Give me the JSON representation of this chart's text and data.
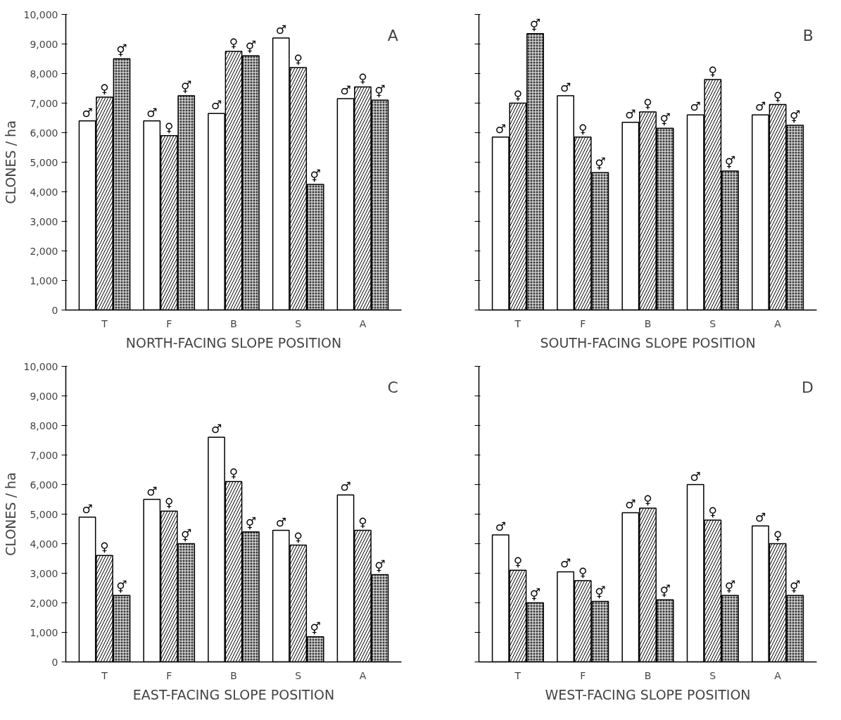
{
  "chart_data": [
    {
      "type": "bar",
      "xlabel": "NORTH-FACING SLOPE POSITION",
      "ylabel": "CLONES / ha",
      "annotations": [
        "A"
      ],
      "categories": [
        "T",
        "F",
        "B",
        "S",
        "A"
      ],
      "ylim": [
        0,
        10000
      ],
      "yticks": [
        0,
        {
          "value": 1000,
          "label": "1,000"
        },
        {
          "value": 2000,
          "label": "2,000"
        },
        {
          "value": 3000,
          "label": "3,000"
        },
        {
          "value": 4000,
          "label": "4,000"
        },
        {
          "value": 5000,
          "label": "5,000"
        },
        {
          "value": 6000,
          "label": "6,000"
        },
        {
          "value": 7000,
          "label": "7,000"
        },
        {
          "value": 8000,
          "label": "8,000"
        },
        {
          "value": 9000,
          "label": "9,000"
        },
        {
          "value": 10000,
          "label": "10,000"
        }
      ],
      "series": [
        {
          "name": "♂",
          "color": "#ffffff",
          "values": [
            6400,
            6400,
            6650,
            9200,
            7150
          ]
        },
        {
          "name": "♀",
          "color": "#ffffff",
          "values": [
            7200,
            5900,
            8750,
            8200,
            7550
          ]
        },
        {
          "name": "⚥",
          "color": "#3a3a3a",
          "values": [
            8500,
            7250,
            8600,
            4250,
            7100
          ]
        }
      ]
    },
    {
      "type": "bar",
      "xlabel": "SOUTH-FACING SLOPE POSITION",
      "annotations": [
        "B"
      ],
      "categories": [
        "T",
        "F",
        "B",
        "S",
        "A"
      ],
      "ylim": [
        0,
        10000
      ],
      "tick_labels": "x",
      "yticks": [
        0,
        1000,
        2000,
        3000,
        4000,
        5000,
        6000,
        7000,
        8000,
        9000,
        10000
      ],
      "series": [
        {
          "name": "♂",
          "color": "#ffffff",
          "values": [
            5850,
            7250,
            6350,
            6600,
            6600
          ]
        },
        {
          "name": "♀",
          "color": "#ffffff",
          "values": [
            7000,
            5850,
            6700,
            7800,
            6950
          ]
        },
        {
          "name": "⚥",
          "color": "#3a3a3a",
          "values": [
            9350,
            4650,
            6150,
            4700,
            6250
          ]
        }
      ]
    },
    {
      "type": "bar",
      "xlabel": "EAST-FACING SLOPE POSITION",
      "ylabel": "CLONES / ha",
      "annotations": [
        "C"
      ],
      "categories": [
        "T",
        "F",
        "B",
        "S",
        "A"
      ],
      "ylim": [
        0,
        10000
      ],
      "yticks": [
        0,
        {
          "value": 1000,
          "label": "1,000"
        },
        {
          "value": 2000,
          "label": "2,000"
        },
        {
          "value": 3000,
          "label": "3,000"
        },
        {
          "value": 4000,
          "label": "4,000"
        },
        {
          "value": 5000,
          "label": "5,000"
        },
        {
          "value": 6000,
          "label": "6,000"
        },
        {
          "value": 7000,
          "label": "7,000"
        },
        {
          "value": 8000,
          "label": "8,000"
        },
        {
          "value": 9000,
          "label": "9,000"
        },
        {
          "value": 10000,
          "label": "10,000"
        }
      ],
      "series": [
        {
          "name": "♂",
          "color": "#ffffff",
          "values": [
            4900,
            5500,
            7600,
            4450,
            5650
          ]
        },
        {
          "name": "♀",
          "color": "#ffffff",
          "values": [
            3600,
            5100,
            6100,
            3950,
            4450
          ]
        },
        {
          "name": "⚥",
          "color": "#3a3a3a",
          "values": [
            2250,
            4000,
            4400,
            850,
            2950
          ]
        }
      ]
    },
    {
      "type": "bar",
      "xlabel": "WEST-FACING SLOPE POSITION",
      "annotations": [
        "D"
      ],
      "categories": [
        "T",
        "F",
        "B",
        "S",
        "A"
      ],
      "ylim": [
        0,
        10000
      ],
      "tick_labels": "x",
      "yticks": [
        0,
        1000,
        2000,
        3000,
        4000,
        5000,
        6000,
        7000,
        8000,
        9000,
        10000
      ],
      "series": [
        {
          "name": "♂",
          "color": "#ffffff",
          "values": [
            4300,
            3050,
            5050,
            6000,
            4600
          ]
        },
        {
          "name": "♀",
          "color": "#ffffff",
          "values": [
            3100,
            2750,
            5200,
            4800,
            4000
          ]
        },
        {
          "name": "⚥",
          "color": "#3a3a3a",
          "values": [
            2000,
            2050,
            2100,
            2250,
            2250
          ]
        }
      ]
    }
  ]
}
